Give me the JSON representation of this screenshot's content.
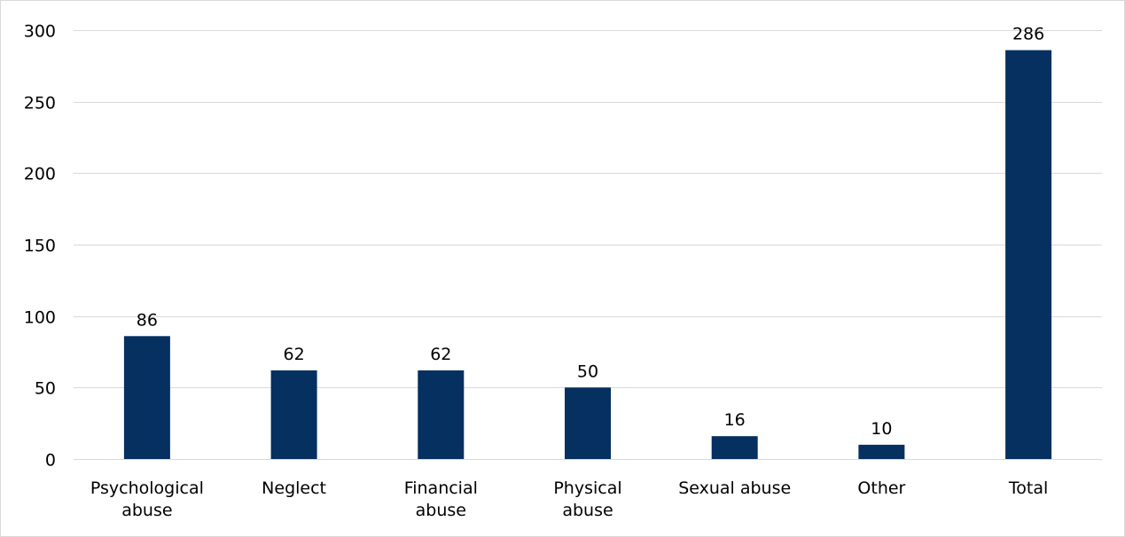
{
  "chart_data": {
    "type": "bar",
    "title": "",
    "xlabel": "",
    "ylabel": "",
    "categories": [
      [
        "Psychological",
        "abuse"
      ],
      [
        "Neglect"
      ],
      [
        "Financial",
        "abuse"
      ],
      [
        "Physical",
        "abuse"
      ],
      [
        "Sexual abuse"
      ],
      [
        "Other"
      ],
      [
        "Total"
      ]
    ],
    "values": [
      86,
      62,
      62,
      50,
      16,
      10,
      286
    ],
    "ylim": [
      0,
      300
    ],
    "yticks": [
      0,
      50,
      100,
      150,
      200,
      250,
      300
    ],
    "grid": true,
    "legend": "none",
    "bar_color": "#05305f"
  }
}
